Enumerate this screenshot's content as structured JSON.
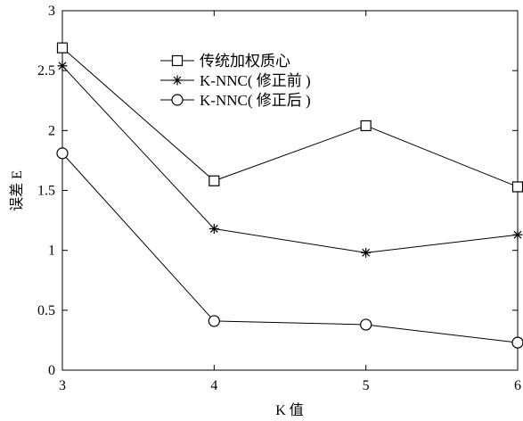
{
  "chart_data": {
    "type": "line",
    "xlabel": "K 值",
    "ylabel": "误差 E",
    "xlim": [
      3,
      6
    ],
    "ylim": [
      0,
      3
    ],
    "x_ticks": [
      3,
      4,
      5,
      6
    ],
    "y_ticks": [
      0,
      0.5,
      1,
      1.5,
      2,
      2.5,
      3
    ],
    "x_tick_labels": [
      "3",
      "4",
      "5",
      "6"
    ],
    "y_tick_labels": [
      "0",
      "0.5",
      "1",
      "1.5",
      "2",
      "2.5",
      "3"
    ],
    "grid": false,
    "legend_position": "top-center",
    "x": [
      3,
      4,
      5,
      6
    ],
    "series": [
      {
        "name": "传统加权质心",
        "marker": "square",
        "values": [
          2.69,
          1.58,
          2.04,
          1.53
        ]
      },
      {
        "name": "K-NNC( 修正前 )",
        "marker": "asterisk",
        "values": [
          2.54,
          1.18,
          0.98,
          1.13
        ]
      },
      {
        "name": "K-NNC( 修正后 )",
        "marker": "circle",
        "values": [
          1.81,
          0.41,
          0.38,
          0.23
        ]
      }
    ]
  },
  "colors": {
    "line": "#000000",
    "background": "#ffffff"
  }
}
